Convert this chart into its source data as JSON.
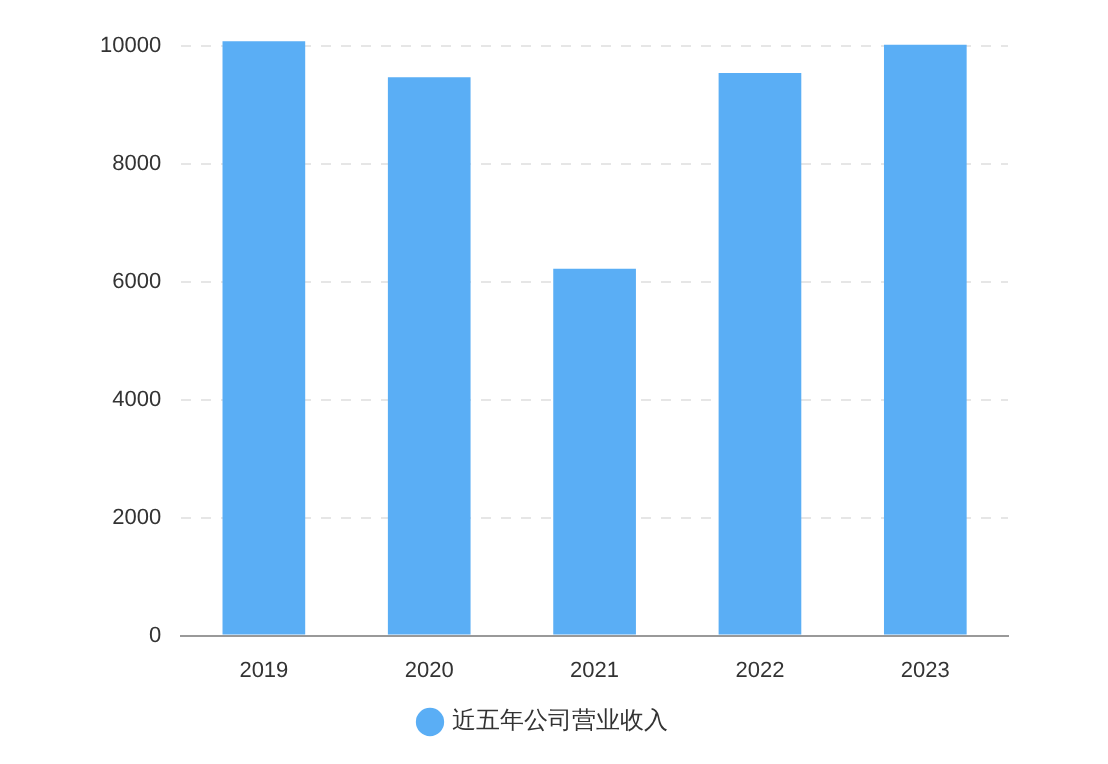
{
  "chart_data": {
    "type": "bar",
    "categories": [
      "2019",
      "2020",
      "2021",
      "2022",
      "2023"
    ],
    "series": [
      {
        "name": "近五年公司营业收入",
        "color": "#5aaef5",
        "values": [
          10080,
          9470,
          6220,
          9540,
          10020
        ]
      }
    ],
    "ylim": [
      0,
      10100
    ],
    "yticks": [
      0,
      2000,
      4000,
      6000,
      8000,
      10000
    ],
    "grid": "y",
    "legend": "bottom"
  }
}
